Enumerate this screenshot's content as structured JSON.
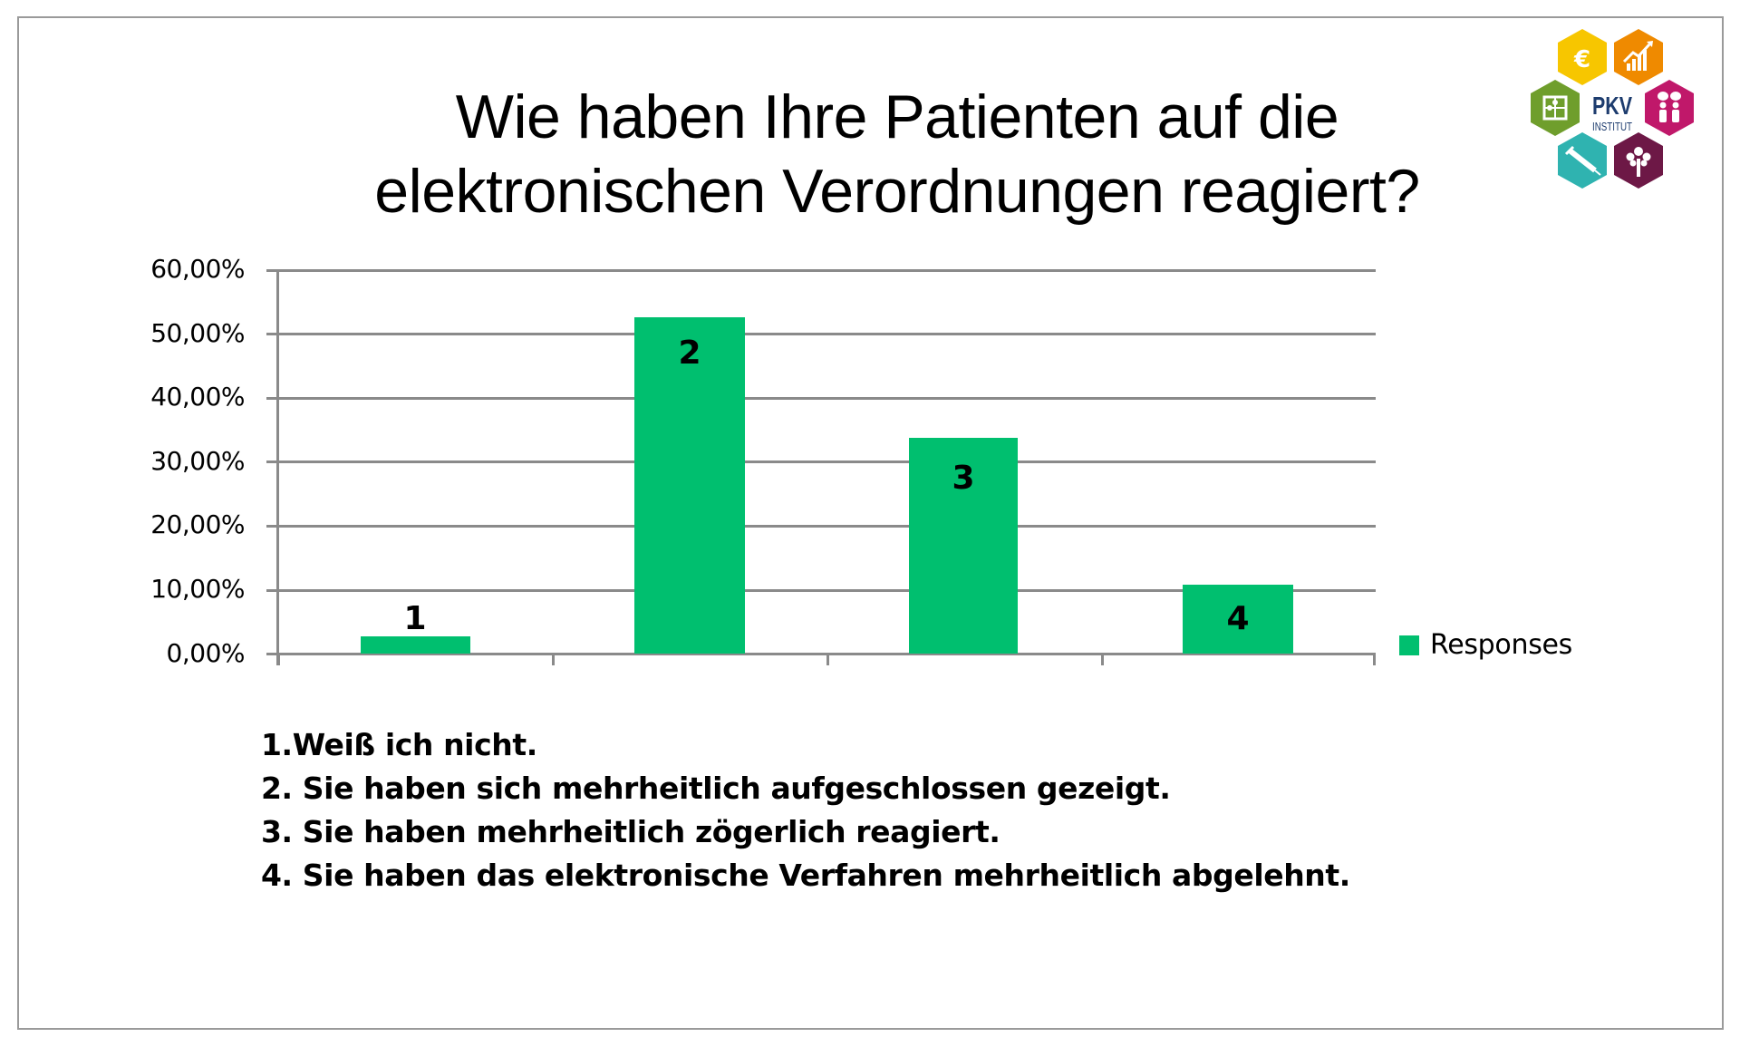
{
  "title": {
    "line1": "Wie haben Ihre Patienten auf die",
    "line2": "elektronischen Verordnungen reagiert?"
  },
  "logo": {
    "name": "PKV",
    "subtitle": "INSTITUT",
    "colors": {
      "euro": "#f7c600",
      "chart": "#ef8a00",
      "puzzle": "#6f9e2c",
      "people": "#c0186a",
      "syringe": "#2fb3b0",
      "tree": "#6d1846",
      "text": "#1d3c6e"
    }
  },
  "chart_data": {
    "type": "bar",
    "title": "Wie haben Ihre Patienten auf die elektronischen Verordnungen reagiert?",
    "categories": [
      "1",
      "2",
      "3",
      "4"
    ],
    "series": [
      {
        "name": "Responses",
        "values": [
          2.7,
          52.6,
          33.8,
          10.8
        ],
        "color": "#00bf6f"
      }
    ],
    "data_labels": [
      "1",
      "2",
      "3",
      "4"
    ],
    "xlabel": "",
    "ylabel": "",
    "ylim": [
      0,
      60
    ],
    "yticks": [
      "0,00%",
      "10,00%",
      "20,00%",
      "30,00%",
      "40,00%",
      "50,00%",
      "60,00%"
    ],
    "grid": true,
    "legend": {
      "position": "right",
      "entries": [
        "Responses"
      ]
    }
  },
  "legend": {
    "label": "Responses",
    "color": "#00bf6f"
  },
  "notes": [
    "1.Weiß ich nicht.",
    "2. Sie haben sich mehrheitlich aufgeschlossen gezeigt.",
    "3. Sie haben mehrheitlich zögerlich reagiert.",
    "4. Sie haben das elektronische Verfahren mehrheitlich abgelehnt."
  ]
}
